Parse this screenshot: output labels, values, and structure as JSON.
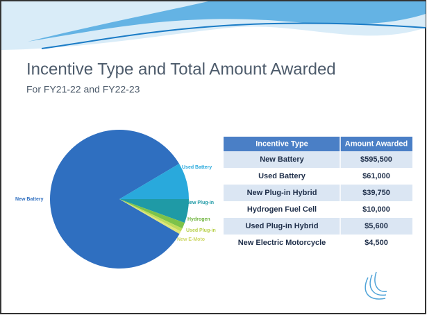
{
  "title": "Incentive Type and Total Amount Awarded",
  "subtitle": "For FY21-22 and FY22-23",
  "chart_data": {
    "type": "pie",
    "categories": [
      "New Battery",
      "Used Battery",
      "New Plug-in",
      "Hydrogen",
      "Used Plug-in",
      "New E-Moto"
    ],
    "values": [
      595500,
      61000,
      39750,
      10000,
      5600,
      4500
    ],
    "colors": [
      "#2f6fc0",
      "#29a9dc",
      "#1f9aa6",
      "#7cc24a",
      "#bedc5a",
      "#dfe57a"
    ]
  },
  "table": {
    "header": [
      "Incentive Type",
      "Amount Awarded"
    ],
    "rows": [
      [
        "New Battery",
        "$595,500"
      ],
      [
        "Used Battery",
        "$61,000"
      ],
      [
        "New Plug-in Hybrid",
        "$39,750"
      ],
      [
        "Hydrogen Fuel Cell",
        "$10,000"
      ],
      [
        "Used Plug-in Hybrid",
        "$5,600"
      ],
      [
        "New Electric Motorcycle",
        "$4,500"
      ]
    ]
  }
}
